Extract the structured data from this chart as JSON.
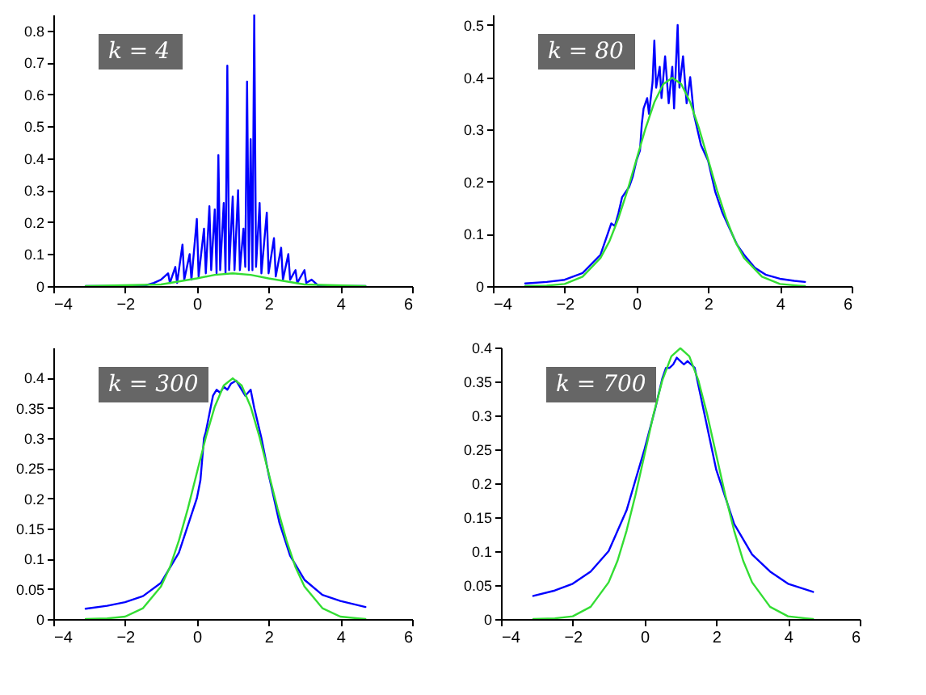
{
  "chart_data": [
    {
      "type": "line",
      "annotations": [
        "k = 4"
      ],
      "xlim": [
        -4,
        6
      ],
      "xticks": [
        -4,
        -2,
        0,
        2,
        4,
        6
      ],
      "ylim": [
        0,
        0.85
      ],
      "yticks": [
        0,
        0.1,
        0.2,
        0.3,
        0.4,
        0.5,
        0.6,
        0.7,
        0.8
      ],
      "grid": false,
      "series": [
        {
          "color": "#0000ff",
          "x": [
            -3.1,
            -1.5,
            -1.2,
            -1,
            -0.8,
            -0.75,
            -0.6,
            -0.55,
            -0.4,
            -0.35,
            -0.2,
            -0.15,
            0,
            0.05,
            0.2,
            0.25,
            0.35,
            0.4,
            0.5,
            0.55,
            0.6,
            0.65,
            0.75,
            0.8,
            0.85,
            0.9,
            1.0,
            1.05,
            1.15,
            1.2,
            1.3,
            1.35,
            1.4,
            1.45,
            1.5,
            1.55,
            1.6,
            1.65,
            1.75,
            1.8,
            1.95,
            2.0,
            2.15,
            2.2,
            2.35,
            2.4,
            2.55,
            2.6,
            2.75,
            2.8,
            3.0,
            3.05,
            3.2,
            3.4,
            4.7
          ],
          "values": [
            0,
            0,
            0.01,
            0.02,
            0.04,
            0.01,
            0.06,
            0.01,
            0.13,
            0.02,
            0.1,
            0.02,
            0.21,
            0.03,
            0.18,
            0.04,
            0.25,
            0.05,
            0.24,
            0.04,
            0.41,
            0.05,
            0.26,
            0.04,
            0.69,
            0.05,
            0.28,
            0.05,
            0.3,
            0.05,
            0.18,
            0.06,
            0.64,
            0.05,
            0.46,
            0.05,
            0.85,
            0.06,
            0.26,
            0.04,
            0.23,
            0.04,
            0.15,
            0.03,
            0.12,
            0.02,
            0.1,
            0.02,
            0.05,
            0.01,
            0.05,
            0.01,
            0.02,
            0,
            0
          ]
        },
        {
          "color": "#33dd33",
          "x": [
            -3.1,
            -1,
            0,
            0.5,
            1,
            1.5,
            2,
            3,
            4.7
          ],
          "values": [
            0,
            0.005,
            0.024,
            0.035,
            0.04,
            0.035,
            0.024,
            0.005,
            0
          ]
        }
      ]
    },
    {
      "type": "line",
      "annotations": [
        "k = 80"
      ],
      "xlim": [
        -4,
        6
      ],
      "xticks": [
        -4,
        -2,
        0,
        2,
        4,
        6
      ],
      "ylim": [
        0,
        0.52
      ],
      "yticks": [
        0,
        0.1,
        0.2,
        0.3,
        0.4,
        0.5
      ],
      "grid": false,
      "series": [
        {
          "color": "#0000ff",
          "x": [
            -3.1,
            -2.5,
            -2,
            -1.5,
            -1,
            -0.8,
            -0.7,
            -0.6,
            -0.5,
            -0.4,
            -0.3,
            -0.2,
            -0.1,
            0,
            0.1,
            0.15,
            0.2,
            0.3,
            0.35,
            0.45,
            0.5,
            0.55,
            0.65,
            0.7,
            0.8,
            0.9,
            1.0,
            1.05,
            1.15,
            1.2,
            1.3,
            1.4,
            1.5,
            1.6,
            1.7,
            1.8,
            2,
            2.2,
            2.4,
            2.6,
            2.8,
            3,
            3.3,
            3.6,
            4,
            4.4,
            4.7
          ],
          "values": [
            0.005,
            0.008,
            0.012,
            0.025,
            0.06,
            0.1,
            0.12,
            0.115,
            0.14,
            0.17,
            0.18,
            0.19,
            0.21,
            0.24,
            0.26,
            0.31,
            0.34,
            0.36,
            0.33,
            0.39,
            0.47,
            0.38,
            0.42,
            0.36,
            0.44,
            0.35,
            0.42,
            0.34,
            0.5,
            0.38,
            0.44,
            0.35,
            0.4,
            0.33,
            0.3,
            0.27,
            0.24,
            0.18,
            0.14,
            0.11,
            0.08,
            0.06,
            0.035,
            0.022,
            0.014,
            0.01,
            0.008
          ]
        },
        {
          "color": "#33dd33",
          "x": [
            -3.1,
            -2.5,
            -2,
            -1.5,
            -1,
            -0.75,
            -0.5,
            -0.25,
            0,
            0.25,
            0.5,
            0.75,
            1,
            1.25,
            1.5,
            1.75,
            2,
            2.25,
            2.5,
            2.75,
            3,
            3.5,
            4,
            4.5,
            4.7
          ],
          "values": [
            0,
            0.001,
            0.004,
            0.018,
            0.054,
            0.086,
            0.13,
            0.183,
            0.242,
            0.301,
            0.352,
            0.387,
            0.399,
            0.387,
            0.352,
            0.301,
            0.242,
            0.183,
            0.13,
            0.086,
            0.054,
            0.018,
            0.004,
            0.001,
            0
          ]
        }
      ]
    },
    {
      "type": "line",
      "annotations": [
        "k = 300"
      ],
      "xlim": [
        -4,
        6
      ],
      "xticks": [
        -4,
        -2,
        0,
        2,
        4,
        6
      ],
      "ylim": [
        0,
        0.45
      ],
      "yticks": [
        0,
        0.05,
        0.1,
        0.15,
        0.2,
        0.25,
        0.3,
        0.35,
        0.4
      ],
      "grid": false,
      "series": [
        {
          "color": "#0000ff",
          "x": [
            -3.1,
            -2.5,
            -2,
            -1.5,
            -1,
            -0.5,
            0,
            0.1,
            0.2,
            0.25,
            0.35,
            0.45,
            0.55,
            0.65,
            0.75,
            0.85,
            0.95,
            1.1,
            1.2,
            1.35,
            1.5,
            1.6,
            1.8,
            2,
            2.3,
            2.6,
            3,
            3.5,
            4,
            4.7
          ],
          "values": [
            0.017,
            0.022,
            0.028,
            0.038,
            0.06,
            0.11,
            0.2,
            0.23,
            0.3,
            0.31,
            0.34,
            0.37,
            0.38,
            0.375,
            0.385,
            0.38,
            0.39,
            0.395,
            0.385,
            0.37,
            0.38,
            0.35,
            0.3,
            0.24,
            0.16,
            0.105,
            0.065,
            0.04,
            0.03,
            0.02
          ]
        },
        {
          "color": "#33dd33",
          "x": [
            -3.1,
            -2.5,
            -2,
            -1.5,
            -1,
            -0.75,
            -0.5,
            -0.25,
            0,
            0.25,
            0.5,
            0.75,
            1,
            1.25,
            1.5,
            1.75,
            2,
            2.25,
            2.5,
            2.75,
            3,
            3.5,
            4,
            4.5,
            4.7
          ],
          "values": [
            0,
            0.001,
            0.004,
            0.018,
            0.054,
            0.086,
            0.13,
            0.183,
            0.242,
            0.301,
            0.352,
            0.387,
            0.399,
            0.387,
            0.352,
            0.301,
            0.242,
            0.183,
            0.13,
            0.086,
            0.054,
            0.018,
            0.004,
            0.001,
            0
          ]
        }
      ]
    },
    {
      "type": "line",
      "annotations": [
        "k = 700"
      ],
      "xlim": [
        -4,
        6
      ],
      "xticks": [
        -4,
        -2,
        0,
        2,
        4,
        6
      ],
      "ylim": [
        0,
        0.4
      ],
      "yticks": [
        0,
        0.05,
        0.1,
        0.15,
        0.2,
        0.25,
        0.3,
        0.35,
        0.4
      ],
      "grid": false,
      "series": [
        {
          "color": "#0000ff",
          "x": [
            -3.1,
            -2.5,
            -2,
            -1.5,
            -1,
            -0.5,
            0,
            0.3,
            0.5,
            0.6,
            0.7,
            0.8,
            0.9,
            1.0,
            1.1,
            1.2,
            1.3,
            1.4,
            1.6,
            1.8,
            2,
            2.5,
            3,
            3.5,
            4,
            4.7
          ],
          "values": [
            0.034,
            0.042,
            0.052,
            0.07,
            0.1,
            0.16,
            0.25,
            0.31,
            0.355,
            0.37,
            0.37,
            0.375,
            0.385,
            0.38,
            0.375,
            0.38,
            0.375,
            0.37,
            0.32,
            0.27,
            0.22,
            0.14,
            0.095,
            0.07,
            0.052,
            0.04
          ]
        },
        {
          "color": "#33dd33",
          "x": [
            -3.1,
            -2.5,
            -2,
            -1.5,
            -1,
            -0.75,
            -0.5,
            -0.25,
            0,
            0.25,
            0.5,
            0.75,
            1,
            1.25,
            1.5,
            1.75,
            2,
            2.25,
            2.5,
            2.75,
            3,
            3.5,
            4,
            4.5,
            4.7
          ],
          "values": [
            0,
            0.001,
            0.004,
            0.018,
            0.054,
            0.086,
            0.13,
            0.183,
            0.242,
            0.301,
            0.352,
            0.387,
            0.399,
            0.387,
            0.352,
            0.301,
            0.242,
            0.183,
            0.13,
            0.086,
            0.054,
            0.018,
            0.004,
            0.001,
            0
          ]
        }
      ]
    }
  ]
}
